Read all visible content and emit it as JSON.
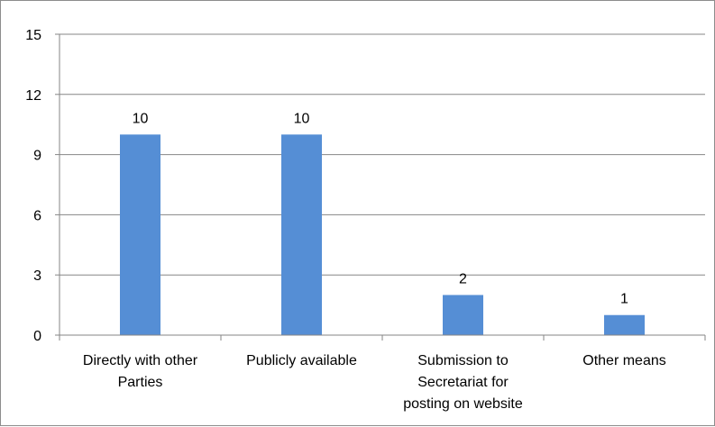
{
  "chart_data": {
    "type": "bar",
    "categories": [
      [
        "Directly with other",
        "Parties"
      ],
      [
        "Publicly available"
      ],
      [
        "Submission to",
        "Secretariat for",
        "posting on website"
      ],
      [
        "Other means"
      ]
    ],
    "series": [
      {
        "values": [
          10,
          10,
          2,
          1
        ]
      }
    ],
    "data_labels": [
      "10",
      "10",
      "2",
      "1"
    ],
    "yticks": [
      "0",
      "3",
      "6",
      "9",
      "12",
      "15"
    ],
    "ytick_values": [
      0,
      3,
      6,
      9,
      12,
      15
    ],
    "ylim": [
      0,
      15
    ],
    "title": "",
    "xlabel": "",
    "ylabel": "",
    "grid": true,
    "legend": false,
    "colors": {
      "bar": "#558ed5",
      "grid": "#868686",
      "axis": "#868686"
    }
  }
}
